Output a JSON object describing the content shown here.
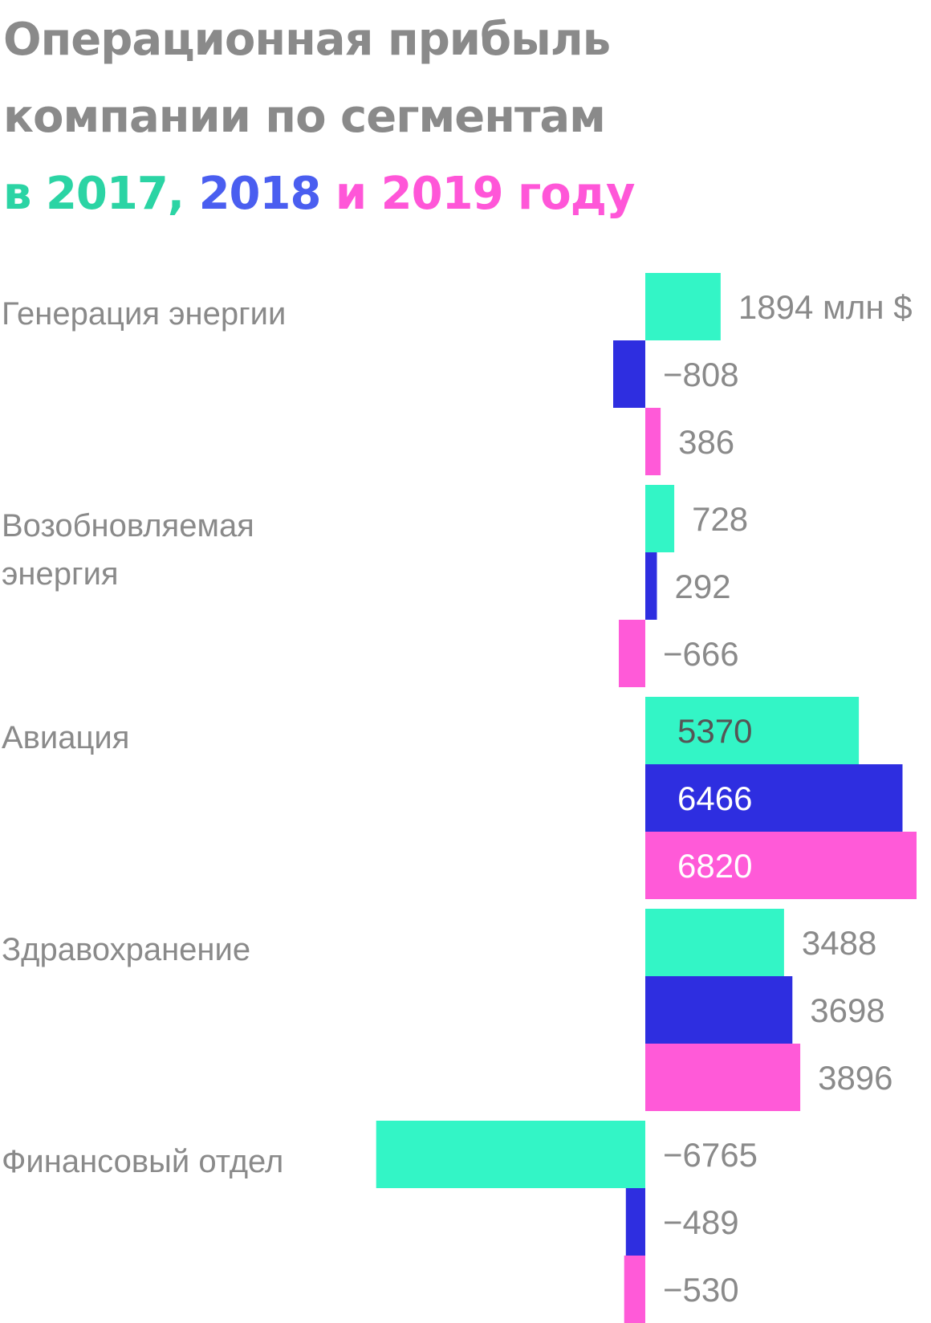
{
  "title": {
    "line1": "Операционная прибыль",
    "line2": "компании по сегментам",
    "line3_prefix": "в ",
    "year1": "2017",
    "sep1": ", ",
    "year2": "2018",
    "sep2": " и ",
    "year3": "2019",
    "suffix": " году"
  },
  "colors": {
    "title_gray": "#8a8a8a",
    "year_2017": "#2bd4a4",
    "year_2018": "#4a5ef0",
    "year_2019": "#ff56d8",
    "bar_2017": "#33f5c6",
    "bar_2018": "#2e2ee0",
    "bar_2019": "#ff5ad8",
    "label_gray": "#8a8a8a",
    "label_dark": "#555555",
    "label_white": "#ffffff"
  },
  "chart_data": {
    "type": "bar",
    "orientation": "horizontal",
    "unit": "млн $",
    "categories": [
      [
        "Генерация энергии"
      ],
      [
        "Возобновляемая",
        "энергия"
      ],
      [
        "Авиация"
      ],
      [
        "Здравохранение"
      ],
      [
        "Финансовый отдел"
      ]
    ],
    "series": [
      {
        "name": "2017",
        "values": [
          1894,
          728,
          5370,
          3488,
          -6765
        ]
      },
      {
        "name": "2018",
        "values": [
          -808,
          292,
          6466,
          3698,
          -489
        ]
      },
      {
        "name": "2019",
        "values": [
          386,
          -666,
          6820,
          3896,
          -530
        ]
      }
    ],
    "value_labels": [
      [
        "1894 млн $",
        "−808",
        "386"
      ],
      [
        "728",
        "292",
        "−666"
      ],
      [
        "5370",
        "6466",
        "6820"
      ],
      [
        "3488",
        "3698",
        "3896"
      ],
      [
        "−6765",
        "−489",
        "−530"
      ]
    ]
  }
}
